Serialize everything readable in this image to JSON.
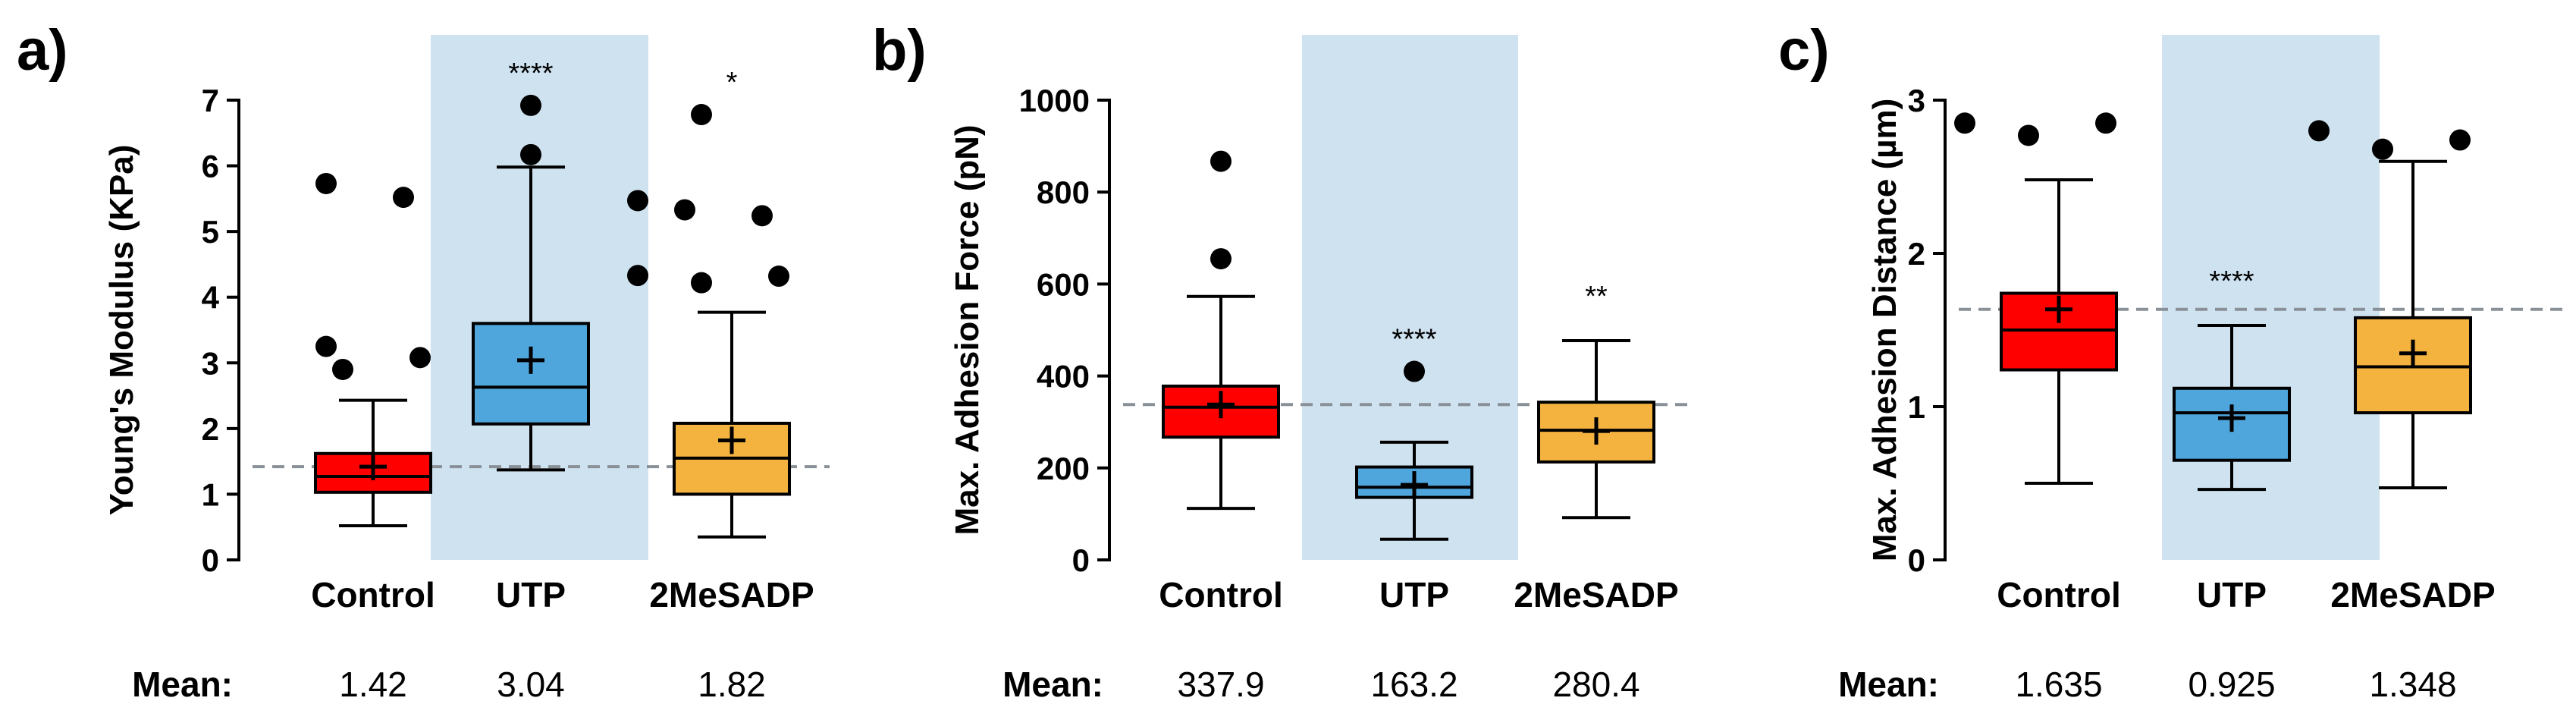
{
  "mean_label": "Mean:",
  "chart_data": [
    {
      "panel": "a)",
      "type": "box",
      "ylabel": "Young's  Modulus  (KPa)",
      "ylim": [
        0,
        7
      ],
      "yticks": [
        "0",
        "1",
        "2",
        "3",
        "4",
        "5",
        "6",
        "7"
      ],
      "categories": [
        "Control",
        "UTP",
        "2MeSADP"
      ],
      "highlighted_category": "UTP",
      "reference_line": 1.42,
      "boxes": [
        {
          "name": "Control",
          "color": "#ff0000",
          "min": 0.52,
          "q1": 1.03,
          "median": 1.27,
          "q3": 1.62,
          "max": 2.43,
          "mean": 1.42,
          "outliers": [
            2.9,
            3.25,
            3.08,
            5.52,
            5.73
          ],
          "significance": "",
          "mean_text": "1.42"
        },
        {
          "name": "UTP",
          "color": "#4ea6dc",
          "min": 1.37,
          "q1": 2.07,
          "median": 2.63,
          "q3": 3.6,
          "max": 5.98,
          "mean": 3.04,
          "outliers": [
            6.17,
            6.92
          ],
          "significance": "****",
          "mean_text": "3.04"
        },
        {
          "name": "2MeSADP",
          "color": "#f4b23f",
          "min": 0.35,
          "q1": 1.0,
          "median": 1.55,
          "q3": 2.08,
          "max": 3.77,
          "mean": 1.82,
          "outliers": [
            4.22,
            4.32,
            4.33,
            5.24,
            5.33,
            5.47,
            6.78
          ],
          "significance": "*",
          "mean_text": "1.82"
        }
      ]
    },
    {
      "panel": "b)",
      "type": "box",
      "ylabel": "Max. Adhesion Force  (pN)",
      "ylim": [
        0,
        1000
      ],
      "yticks": [
        "0",
        "200",
        "400",
        "600",
        "800",
        "1000"
      ],
      "categories": [
        "Control",
        "UTP",
        "2MeSADP"
      ],
      "highlighted_category": "UTP",
      "reference_line": 337.9,
      "boxes": [
        {
          "name": "Control",
          "color": "#ff0000",
          "min": 112,
          "q1": 267,
          "median": 332,
          "q3": 378,
          "max": 573,
          "mean": 337.9,
          "outliers": [
            655,
            867
          ],
          "significance": "",
          "mean_text": "337.9"
        },
        {
          "name": "UTP",
          "color": "#4ea6dc",
          "min": 45,
          "q1": 136,
          "median": 158,
          "q3": 202,
          "max": 256,
          "mean": 163.2,
          "outliers": [
            410
          ],
          "significance": "****",
          "mean_text": "163.2"
        },
        {
          "name": "2MeSADP",
          "color": "#f4b23f",
          "min": 92,
          "q1": 213,
          "median": 282,
          "q3": 343,
          "max": 477,
          "mean": 280.4,
          "outliers": [],
          "significance": "**",
          "mean_text": "280.4"
        }
      ]
    },
    {
      "panel": "c)",
      "type": "box",
      "ylabel": "Max. Adhesion Distance  (µm)",
      "ylim": [
        0,
        3
      ],
      "yticks": [
        "0",
        "1",
        "2",
        "3"
      ],
      "categories": [
        "Control",
        "UTP",
        "2MeSADP"
      ],
      "highlighted_category": "UTP",
      "reference_line": 1.635,
      "boxes": [
        {
          "name": "Control",
          "color": "#ff0000",
          "min": 0.5,
          "q1": 1.24,
          "median": 1.5,
          "q3": 1.74,
          "max": 2.48,
          "mean": 1.635,
          "outliers": [
            2.77,
            2.85,
            2.85
          ],
          "significance": "",
          "mean_text": "1.635"
        },
        {
          "name": "UTP",
          "color": "#4ea6dc",
          "min": 0.46,
          "q1": 0.65,
          "median": 0.96,
          "q3": 1.12,
          "max": 1.53,
          "mean": 0.925,
          "outliers": [],
          "significance": "****",
          "mean_text": "0.925"
        },
        {
          "name": "2MeSADP",
          "color": "#f4b23f",
          "min": 0.47,
          "q1": 0.96,
          "median": 1.26,
          "q3": 1.58,
          "max": 2.6,
          "mean": 1.348,
          "outliers": [
            2.68,
            2.8,
            2.74
          ],
          "significance": "",
          "mean_text": "1.348"
        }
      ]
    }
  ]
}
